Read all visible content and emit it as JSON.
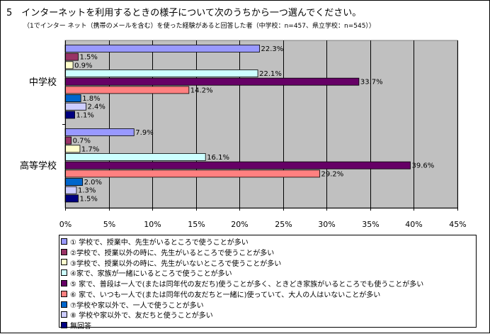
{
  "title": "5　インターネットを利用するときの様子について次のうちから一つ選んでください。",
  "subtitle": "（1でインター ネット（携帯のメールを含む）を使った経験があると回答した者（中学校：n=457、県立学校：n=545））",
  "chart_data": {
    "type": "bar",
    "orientation": "horizontal",
    "categories": [
      "中学校",
      "高等学校"
    ],
    "xlim": [
      0,
      45
    ],
    "xticks": [
      0,
      5,
      10,
      15,
      20,
      25,
      30,
      35,
      40,
      45
    ],
    "tick_suffix": "%",
    "grid": true,
    "legend_position": "bottom",
    "plot_background": "#c0c0c0",
    "series": [
      {
        "name": "① 学校で、授業中、先生がいるところで使うことが多い",
        "color": "#9999ff",
        "values": [
          22.3,
          7.9
        ],
        "labels": [
          "22.3%",
          "7.9%"
        ]
      },
      {
        "name": "②学校で、授業以外の時に、先生がいるところで使うことが多い",
        "color": "#993366",
        "values": [
          1.5,
          0.7
        ],
        "labels": [
          "1.5%",
          "0.7%"
        ]
      },
      {
        "name": "③学校で、授業以外の時に、先生がいないところで使うことが多い",
        "color": "#ffffcc",
        "values": [
          0.9,
          1.7
        ],
        "labels": [
          "0.9%",
          "1.7%"
        ]
      },
      {
        "name": "④家で、家族が一緒にいるところで使うことが多い",
        "color": "#ccffff",
        "values": [
          22.1,
          16.1
        ],
        "labels": [
          "22.1%",
          "16.1%"
        ]
      },
      {
        "name": "⑤ 家で、普段は一人で(または同年代の友だち)使うことが多く、ときどき家族がいるところでも使うことが多い",
        "color": "#660066",
        "values": [
          33.7,
          39.6
        ],
        "labels": [
          "33.7%",
          "39.6%"
        ]
      },
      {
        "name": "⑥ 家で、いつも一人で(または同年代の友だちと一緒に)使っていて、大人の人はいないことが多い",
        "color": "#ff8080",
        "values": [
          14.2,
          29.2
        ],
        "labels": [
          "14.2%",
          "29.2%"
        ]
      },
      {
        "name": "⑦学校や家以外で、一人で使うことが多い",
        "color": "#0066cc",
        "values": [
          1.8,
          2.0
        ],
        "labels": [
          "1.8%",
          "2.0%"
        ]
      },
      {
        "name": "⑧ 学校や家以外で、友だちと使うことが多い",
        "color": "#ccccff",
        "values": [
          2.4,
          1.3
        ],
        "labels": [
          "2.4%",
          "1.3%"
        ]
      },
      {
        "name": "無回答",
        "color": "#000080",
        "values": [
          1.1,
          1.5
        ],
        "labels": [
          "1.1%",
          "1.5%"
        ]
      }
    ]
  }
}
